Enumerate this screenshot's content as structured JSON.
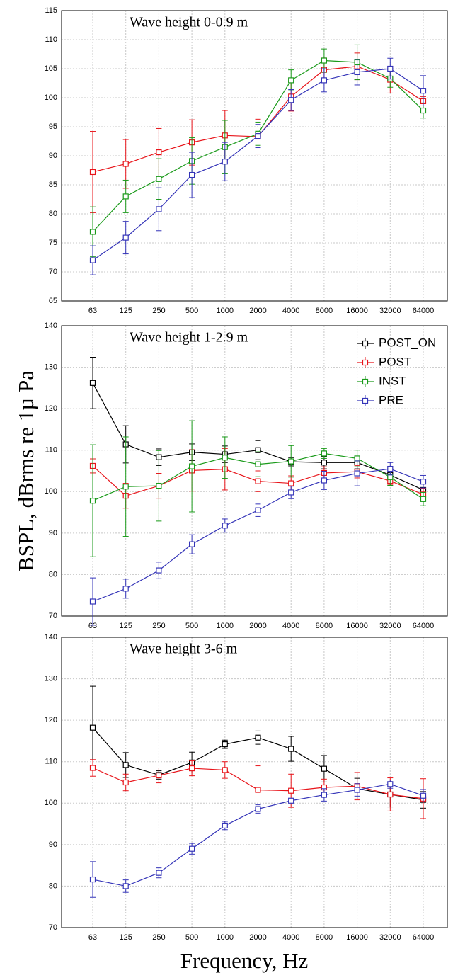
{
  "chart_data": [
    {
      "type": "line",
      "title": "Wave height  0-0.9 m",
      "categories": [
        "63",
        "125",
        "250",
        "500",
        "1000",
        "2000",
        "4000",
        "8000",
        "16000",
        "32000",
        "64000"
      ],
      "ylim": [
        65,
        115
      ],
      "yticks": [
        65,
        70,
        75,
        80,
        85,
        90,
        95,
        100,
        105,
        110,
        115
      ],
      "grid": true,
      "series": [
        {
          "name": "POST",
          "color": "#e8141a",
          "values": [
            87.2,
            88.6,
            90.6,
            92.3,
            93.5,
            93.3,
            100.2,
            104.8,
            105.4,
            103.1,
            99.4
          ],
          "errors": [
            7,
            4.2,
            4.1,
            3.9,
            4.3,
            3,
            2.5,
            2.2,
            2.3,
            2.3,
            0.8
          ]
        },
        {
          "name": "INST",
          "color": "#1a9a1a",
          "values": [
            76.9,
            83,
            86,
            89.1,
            91.5,
            93.8,
            103,
            106.4,
            106.1,
            103.3,
            97.8
          ],
          "errors": [
            4.3,
            2.8,
            3.5,
            4,
            4.6,
            2,
            1.8,
            2,
            3,
            1.5,
            1.3
          ]
        },
        {
          "name": "PRE",
          "color": "#3434b8",
          "values": [
            72,
            75.9,
            80.8,
            86.7,
            89,
            93.4,
            99.6,
            103,
            104.4,
            105,
            101.2
          ],
          "errors": [
            2.5,
            2.8,
            3.7,
            3.9,
            3.3,
            2,
            1.8,
            2,
            2.2,
            1.8,
            2.6
          ]
        }
      ]
    },
    {
      "type": "line",
      "title": "Wave height 1-2.9 m",
      "ylabel": "BSPL, dBrms re 1µ Pa",
      "legend": "upper right",
      "categories": [
        "63",
        "125",
        "250",
        "500",
        "1000",
        "2000",
        "4000",
        "8000",
        "16000",
        "32000",
        "64000"
      ],
      "ylim": [
        70,
        140
      ],
      "yticks": [
        70,
        80,
        90,
        100,
        110,
        120,
        130,
        140
      ],
      "grid": true,
      "series": [
        {
          "name": "POST_ON",
          "color": "#000000",
          "values": [
            126.2,
            111.4,
            108.3,
            109.5,
            109,
            110,
            107.2,
            107,
            107,
            104,
            100.4
          ],
          "errors": [
            6.2,
            4.5,
            2,
            2,
            2,
            2.3,
            1,
            1.5,
            1.5,
            2,
            1.5
          ]
        },
        {
          "name": "POST",
          "color": "#e8141a",
          "values": [
            106.2,
            99,
            101.4,
            105.1,
            105.4,
            102.5,
            102,
            104.5,
            104.8,
            102.6,
            99.3
          ],
          "errors": [
            1.7,
            3,
            3,
            5,
            5,
            2.5,
            1.8,
            1.5,
            1.5,
            1,
            1.5
          ]
        },
        {
          "name": "INST",
          "color": "#1a9a1a",
          "values": [
            97.8,
            101.2,
            101.4,
            106.1,
            108.2,
            106.6,
            107.3,
            109.2,
            108,
            103.5,
            98.2
          ],
          "errors": [
            13.5,
            12,
            8.5,
            11,
            5,
            3,
            3.8,
            1.2,
            2,
            2,
            1.6
          ]
        },
        {
          "name": "PRE",
          "color": "#3434b8",
          "values": [
            73.5,
            76.6,
            81,
            87.3,
            91.8,
            95.5,
            99.8,
            102.7,
            104.4,
            105.5,
            102.4
          ],
          "errors": [
            5.7,
            2.3,
            2,
            2.3,
            1.6,
            1.5,
            1.5,
            2.2,
            3,
            1.5,
            1.5
          ]
        }
      ]
    },
    {
      "type": "line",
      "title": "Wave height  3-6 m",
      "xlabel": "Frequency, Hz",
      "categories": [
        "63",
        "125",
        "250",
        "500",
        "1000",
        "2000",
        "4000",
        "8000",
        "16000",
        "32000",
        "64000"
      ],
      "ylim": [
        70,
        140
      ],
      "yticks": [
        70,
        80,
        90,
        100,
        110,
        120,
        130,
        140
      ],
      "grid": true,
      "series": [
        {
          "name": "POST_ON",
          "color": "#000000",
          "values": [
            118.2,
            109.2,
            106.8,
            109.8,
            114.2,
            115.8,
            113.1,
            108.3,
            103.5,
            102.1,
            100.8
          ],
          "errors": [
            10,
            3,
            1,
            2.5,
            1,
            1.6,
            3,
            3.2,
            2.5,
            3,
            2
          ]
        },
        {
          "name": "POST",
          "color": "#e8141a",
          "values": [
            108.5,
            105,
            106.7,
            108.4,
            108,
            103.2,
            103,
            103.8,
            104.1,
            102.1,
            101.1
          ],
          "errors": [
            2,
            2,
            1.8,
            1.8,
            2,
            5.8,
            4,
            2,
            3.3,
            4,
            4.8
          ]
        },
        {
          "name": "PRE",
          "color": "#3434b8",
          "values": [
            81.6,
            80,
            83.2,
            89,
            94.6,
            98.6,
            100.6,
            102,
            103.2,
            104.6,
            101.8
          ],
          "errors": [
            4.3,
            1.5,
            1.2,
            1.3,
            1,
            1,
            0.5,
            1.5,
            1.5,
            1,
            1.5
          ]
        }
      ]
    }
  ]
}
